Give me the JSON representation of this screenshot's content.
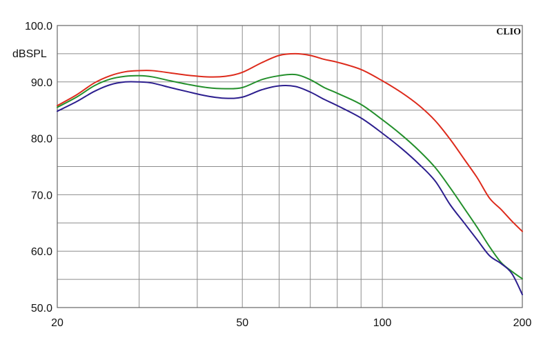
{
  "chart_data": {
    "type": "line",
    "title": "",
    "brand": "CLIO",
    "xlabel": "",
    "ylabel": "dBSPL",
    "xscale": "log",
    "xlim": [
      20,
      200
    ],
    "ylim": [
      50,
      100
    ],
    "grid": true,
    "x_tick_labels": [
      "20",
      "50",
      "100",
      "200"
    ],
    "y_tick_labels": [
      "100.0",
      "90.0",
      "80.0",
      "70.0",
      "60.0",
      "50.0"
    ],
    "colors": {
      "red": "#dd2a1b",
      "green": "#238f2b",
      "blue": "#2c1e8e",
      "grid": "#8c8c8c",
      "frame": "#666666",
      "text": "#111111"
    },
    "series": [
      {
        "color": "#dd2a1b",
        "x": [
          20,
          22,
          24,
          26,
          28,
          30,
          32,
          35,
          38,
          42,
          46,
          50,
          55,
          60,
          65,
          70,
          75,
          80,
          90,
          100,
          110,
          120,
          130,
          140,
          150,
          160,
          170,
          180,
          190,
          200
        ],
        "y": [
          85.8,
          87.7,
          89.8,
          91.1,
          91.8,
          92.0,
          92.0,
          91.6,
          91.2,
          90.9,
          91.0,
          91.7,
          93.4,
          94.7,
          95.0,
          94.7,
          94.0,
          93.5,
          92.2,
          90.2,
          88.1,
          85.8,
          83.1,
          79.8,
          76.3,
          73.0,
          69.4,
          67.4,
          65.3,
          63.5
        ]
      },
      {
        "color": "#238f2b",
        "x": [
          20,
          22,
          24,
          26,
          28,
          30,
          32,
          35,
          38,
          42,
          46,
          50,
          55,
          60,
          65,
          70,
          75,
          80,
          90,
          100,
          110,
          120,
          130,
          140,
          150,
          160,
          170,
          180,
          190,
          200
        ],
        "y": [
          85.5,
          87.3,
          89.3,
          90.5,
          91.0,
          91.1,
          90.9,
          90.2,
          89.6,
          89.0,
          88.8,
          89.0,
          90.4,
          91.1,
          91.3,
          90.4,
          89.0,
          88.0,
          86.0,
          83.3,
          80.6,
          77.8,
          74.8,
          71.2,
          67.6,
          64.2,
          60.8,
          58.0,
          56.4,
          55.1
        ]
      },
      {
        "color": "#2c1e8e",
        "x": [
          20,
          22,
          24,
          26,
          28,
          30,
          32,
          35,
          38,
          42,
          46,
          50,
          55,
          60,
          65,
          70,
          75,
          80,
          90,
          100,
          110,
          120,
          130,
          140,
          150,
          160,
          170,
          180,
          190,
          200
        ],
        "y": [
          84.8,
          86.5,
          88.3,
          89.5,
          90.0,
          90.0,
          89.8,
          89.0,
          88.3,
          87.5,
          87.1,
          87.3,
          88.6,
          89.3,
          89.2,
          88.2,
          86.9,
          85.8,
          83.6,
          80.9,
          78.2,
          75.4,
          72.4,
          68.2,
          65.0,
          62.0,
          59.2,
          57.8,
          56.0,
          52.3
        ]
      }
    ]
  }
}
